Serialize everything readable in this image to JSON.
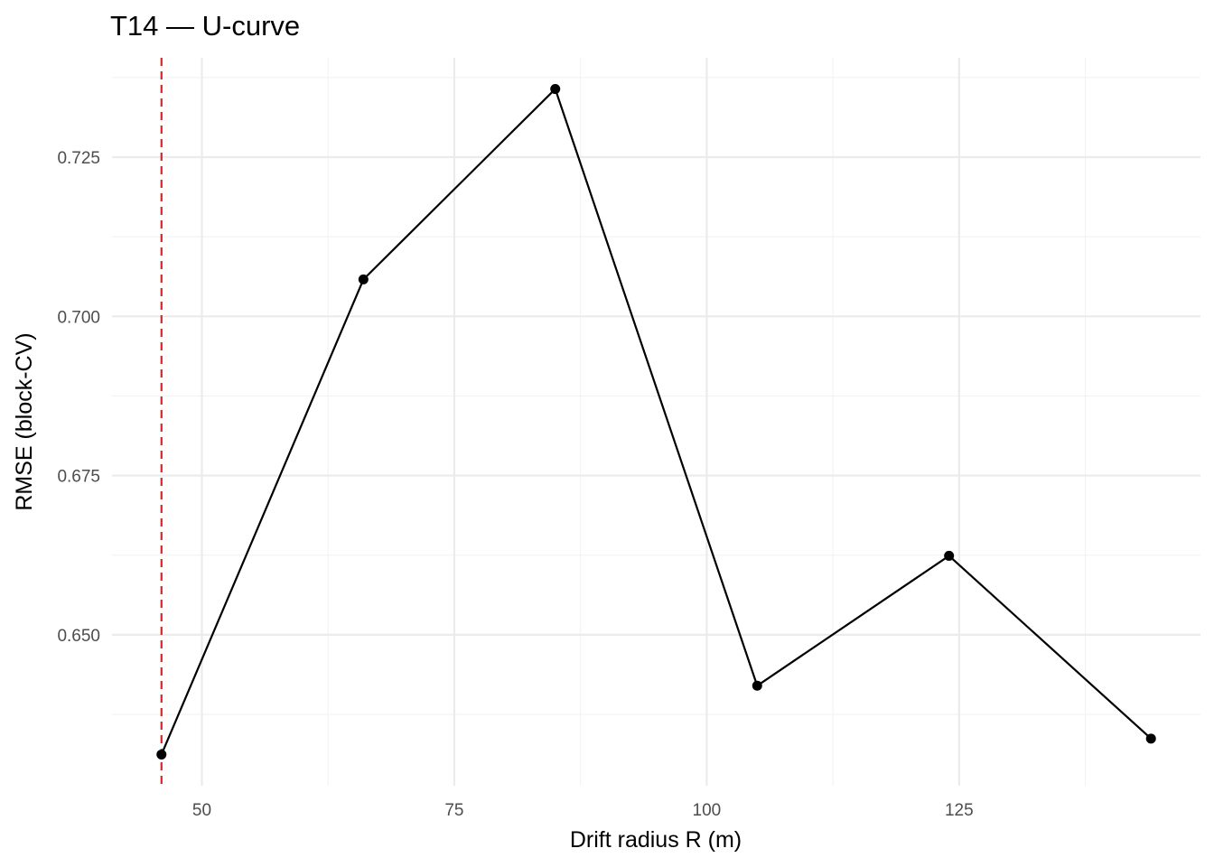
{
  "chart_data": {
    "type": "line",
    "title": "T14 — U-curve",
    "xlabel": "Drift radius R (m)",
    "ylabel": "RMSE (block-CV)",
    "x": [
      46,
      66,
      85,
      105,
      124,
      144
    ],
    "series": [
      {
        "values": [
          0.6312,
          0.7058,
          0.7357,
          0.642,
          0.6624,
          0.6337
        ],
        "color": "#000000"
      }
    ],
    "xlim": [
      41.1,
      148.9
    ],
    "ylim": [
      0.6263,
      0.7406
    ],
    "x_ticks": [
      50,
      75,
      100,
      125
    ],
    "x_tick_labels": [
      "50",
      "75",
      "100",
      "125"
    ],
    "x_minor_ticks": [
      62.5,
      87.5,
      112.5,
      137.5
    ],
    "y_ticks": [
      0.65,
      0.675,
      0.7,
      0.725
    ],
    "y_tick_labels": [
      "0.650",
      "0.675",
      "0.700",
      "0.725"
    ],
    "y_minor_ticks": [
      0.6375,
      0.6625,
      0.6875,
      0.7125,
      0.7375
    ],
    "reference_line": {
      "orientation": "vertical",
      "x": 46,
      "style": "dashed",
      "color": "#d62728"
    },
    "grid": true,
    "legend": "none",
    "theme": "minimal"
  }
}
